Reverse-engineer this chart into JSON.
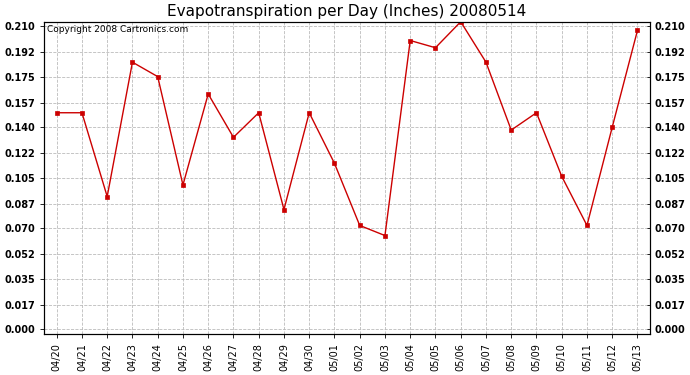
{
  "title": "Evapotranspiration per Day (Inches) 20080514",
  "copyright": "Copyright 2008 Cartronics.com",
  "x_labels": [
    "04/20",
    "04/21",
    "04/22",
    "04/23",
    "04/24",
    "04/25",
    "04/26",
    "04/27",
    "04/28",
    "04/29",
    "04/30",
    "05/01",
    "05/02",
    "05/03",
    "05/04",
    "05/05",
    "05/06",
    "05/07",
    "05/08",
    "05/09",
    "05/10",
    "05/11",
    "05/12",
    "05/13"
  ],
  "y_values": [
    0.15,
    0.15,
    0.092,
    0.185,
    0.175,
    0.1,
    0.163,
    0.133,
    0.15,
    0.083,
    0.15,
    0.115,
    0.072,
    0.065,
    0.2,
    0.195,
    0.213,
    0.185,
    0.138,
    0.15,
    0.106,
    0.072,
    0.14,
    0.207
  ],
  "line_color": "#cc0000",
  "marker": "s",
  "marker_size": 2.5,
  "background_color": "#ffffff",
  "plot_bg_color": "#ffffff",
  "grid_color": "#bbbbbb",
  "grid_style": "--",
  "ylim": [
    0.0,
    0.21
  ],
  "yticks": [
    0.0,
    0.017,
    0.035,
    0.052,
    0.07,
    0.087,
    0.105,
    0.122,
    0.14,
    0.157,
    0.175,
    0.192,
    0.21
  ],
  "title_fontsize": 11,
  "tick_fontsize": 7,
  "copyright_fontsize": 6.5
}
